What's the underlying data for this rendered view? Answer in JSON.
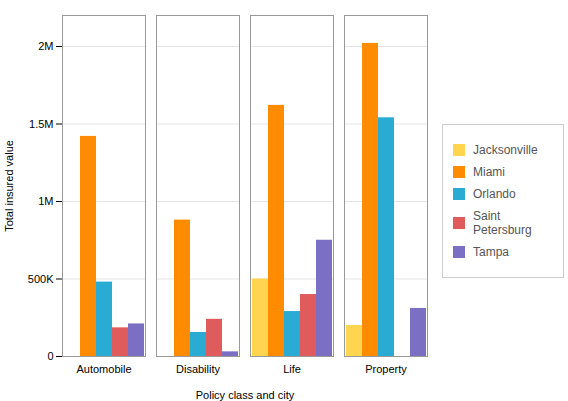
{
  "chart_data": {
    "type": "bar",
    "categories": [
      "Automobile",
      "Disability",
      "Life",
      "Property"
    ],
    "series": [
      {
        "name": "Jacksonville",
        "color": "#FFD54F",
        "values": [
          0,
          0,
          500000,
          200000
        ]
      },
      {
        "name": "Miami",
        "color": "#FF8C00",
        "values": [
          1420000,
          880000,
          1620000,
          2020000
        ]
      },
      {
        "name": "Orlando",
        "color": "#29ABD4",
        "values": [
          480000,
          155000,
          290000,
          1540000
        ]
      },
      {
        "name": "Saint Petersburg",
        "color": "#E05C5C",
        "values": [
          185000,
          240000,
          400000,
          0
        ]
      },
      {
        "name": "Tampa",
        "color": "#7B6FC4",
        "values": [
          210000,
          30000,
          750000,
          310000
        ]
      }
    ],
    "xlabel": "Policy class and city",
    "ylabel": "Total insured value",
    "ylim": [
      0,
      2200000
    ],
    "yticks": [
      0,
      {
        "value": 500000,
        "label": "500K"
      },
      {
        "value": 1000000,
        "label": "1M"
      },
      {
        "value": 1500000,
        "label": "1.5M"
      },
      {
        "value": 2000000,
        "label": "2M"
      }
    ],
    "grid": true,
    "legend": "right"
  }
}
